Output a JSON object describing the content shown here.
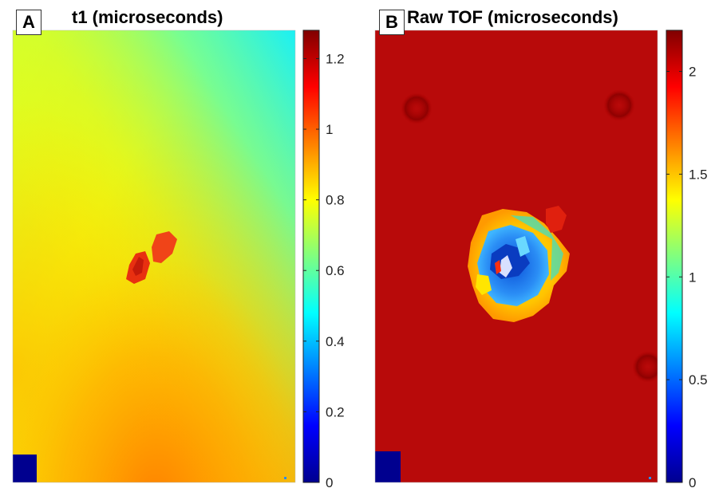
{
  "chart_data": [
    {
      "type": "heatmap",
      "panel_label": "A",
      "title": "t1 (microseconds)",
      "colormap": "jet",
      "colorbar": {
        "range": [
          0,
          1.28
        ],
        "ticks": [
          0,
          0.2,
          0.4,
          0.6,
          0.8,
          1,
          1.2
        ],
        "tick_labels": [
          "0",
          "0.2",
          "0.4",
          "0.6",
          "0.8",
          "1",
          "1.2"
        ]
      },
      "description_values": {
        "top_right_region": 0.45,
        "top_left_region": 0.8,
        "center_region": 0.85,
        "bottom_center_region": 0.95,
        "defect_spots": 1.15,
        "bottom_left_block": 0
      }
    },
    {
      "type": "heatmap",
      "panel_label": "B",
      "title": "Raw TOF (microseconds)",
      "colormap": "jet",
      "colorbar": {
        "range": [
          0,
          2.2
        ],
        "ticks": [
          0,
          0.5,
          1,
          1.5,
          2
        ],
        "tick_labels": [
          "0",
          "0.5",
          "1",
          "1.5",
          "2"
        ]
      },
      "description_values": {
        "background": 2.15,
        "damage_core": 0.55,
        "damage_ring": 1.4,
        "bottom_left_block": 0
      }
    }
  ]
}
